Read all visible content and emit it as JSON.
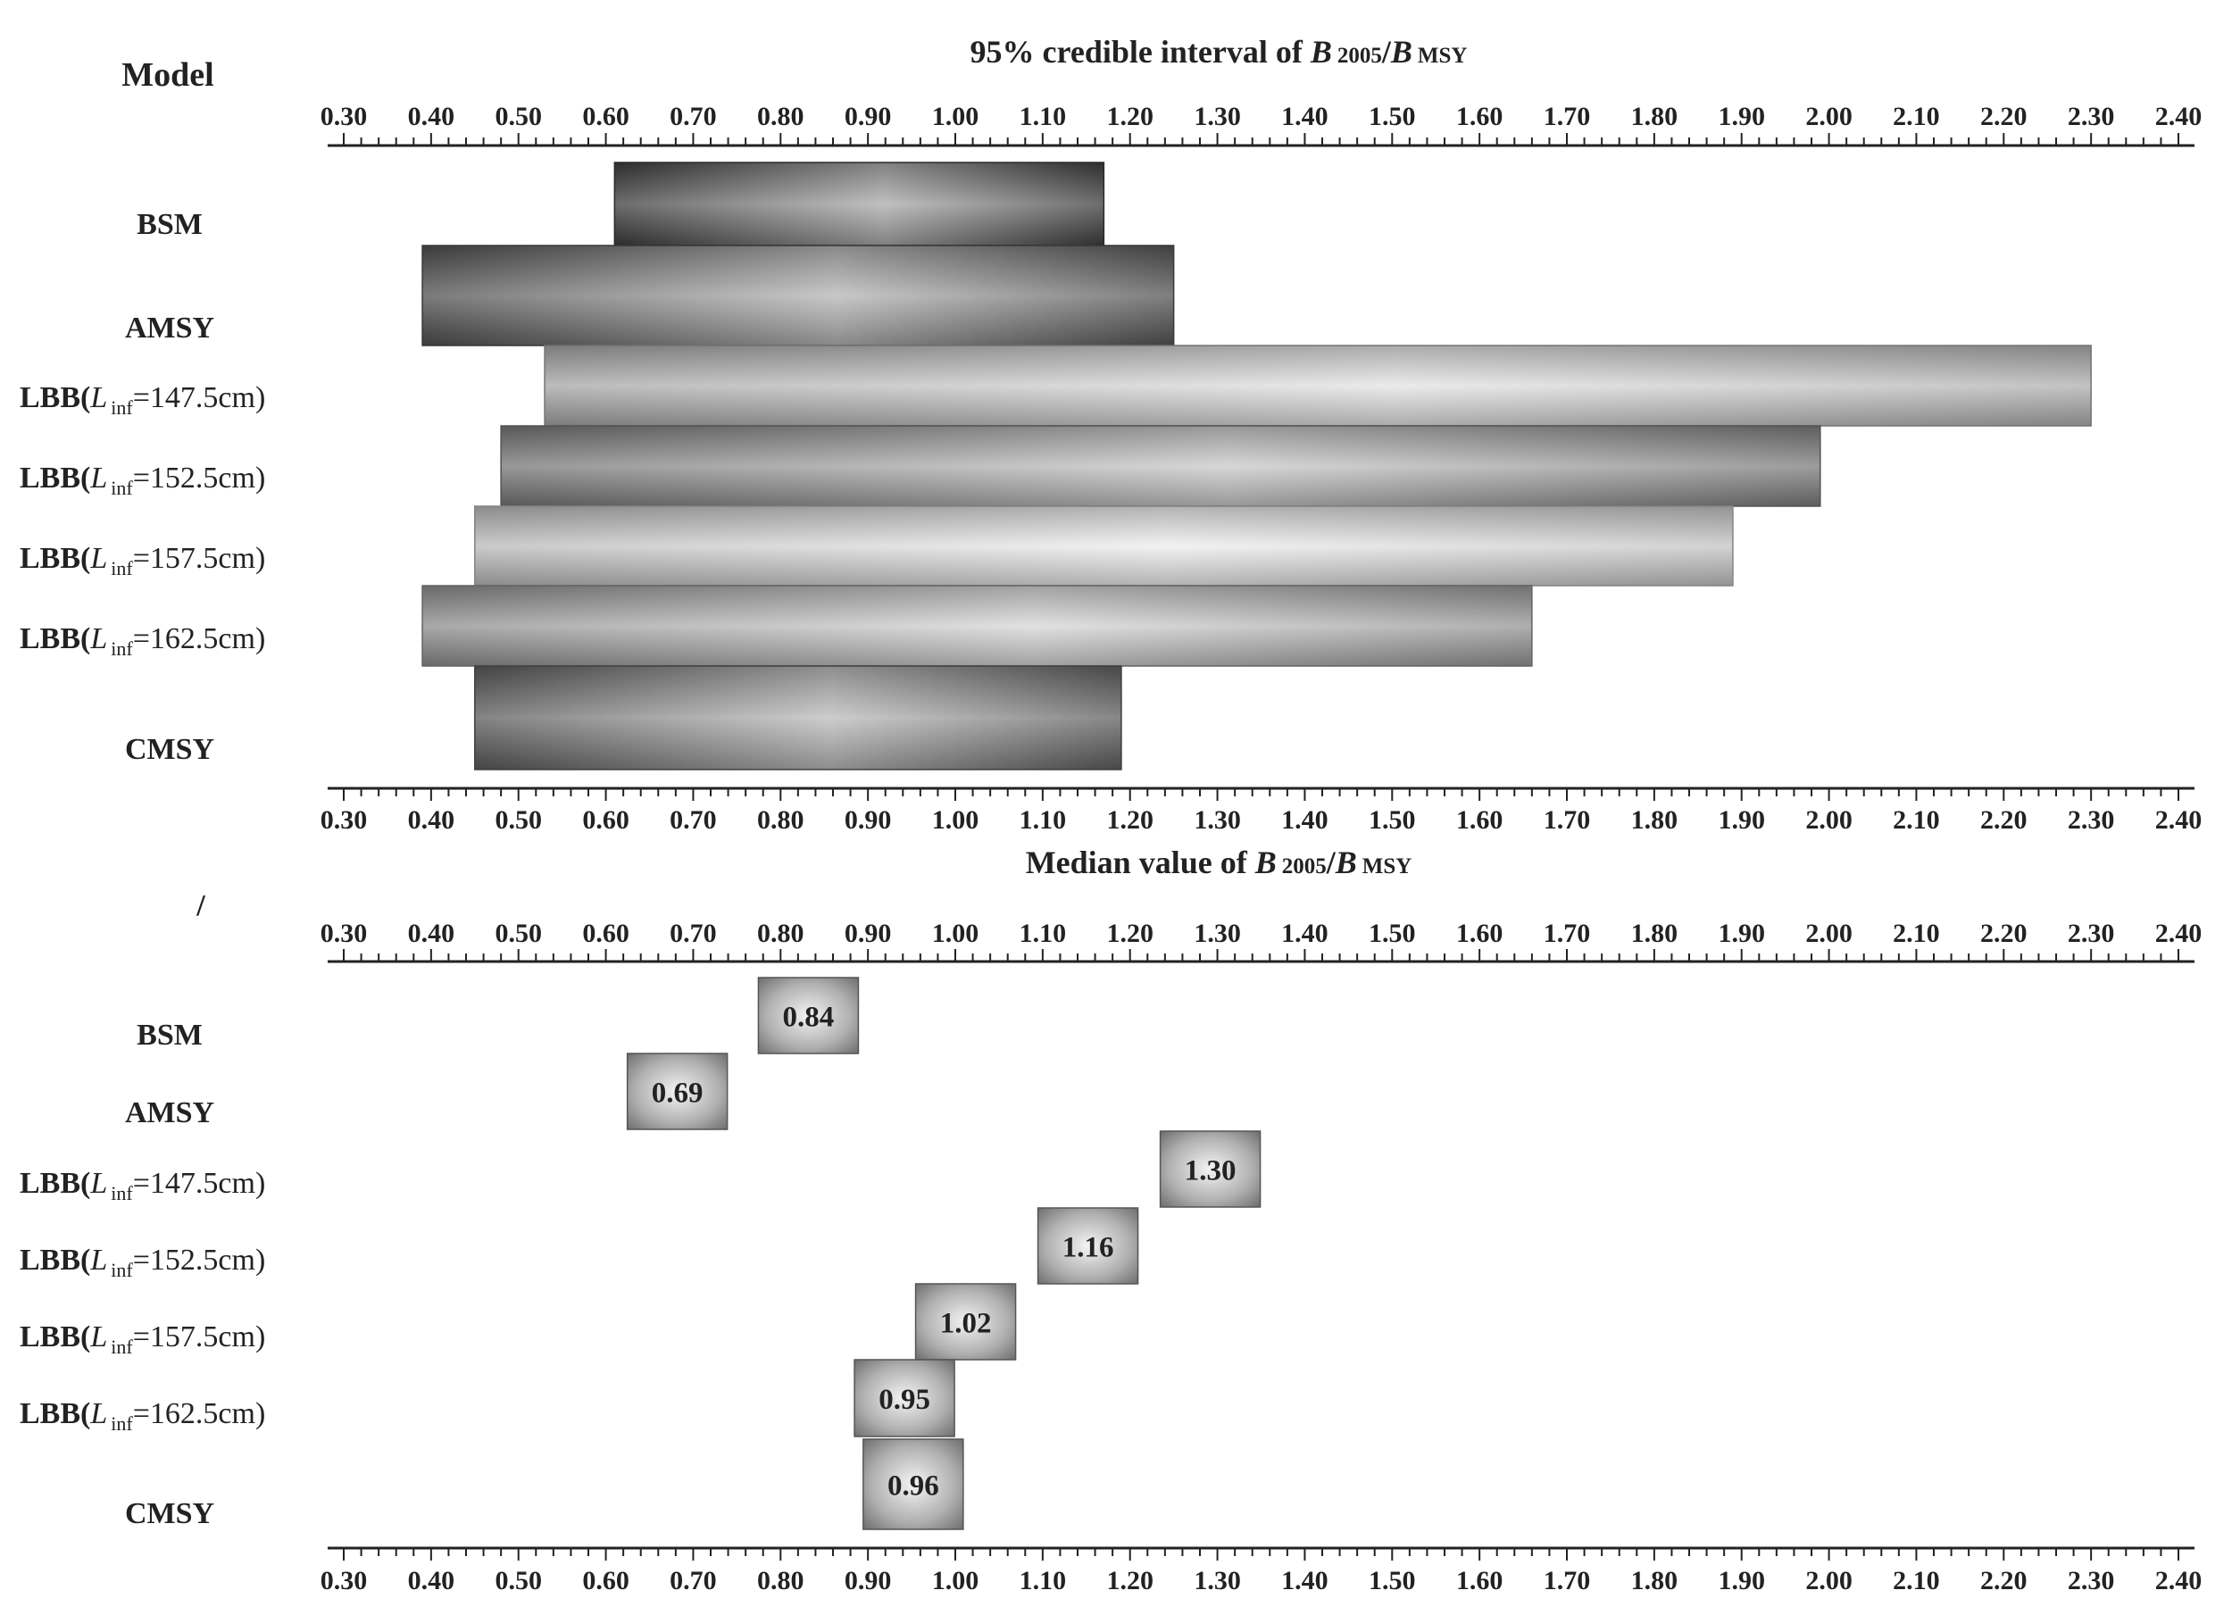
{
  "corner_labels": {
    "model": "Model",
    "slash": "/"
  },
  "panels": [
    {
      "title_prefix": "95% credible interval of ",
      "title_var": "B",
      "title_sub": "2005",
      "title_slash": "/",
      "title_var2": "B",
      "title_sub2": "MSY"
    },
    {
      "title_prefix": "Median value of ",
      "title_var": "B",
      "title_sub": "2005",
      "title_slash": "/",
      "title_var2": "B",
      "title_sub2": "MSY"
    }
  ],
  "model_labels": [
    {
      "plain": "BSM"
    },
    {
      "plain": "AMSY"
    },
    {
      "plain": "LBB(",
      "italic": "L",
      "sub": "inf",
      "tail": "=147.5cm)"
    },
    {
      "plain": "LBB(",
      "italic": "L",
      "sub": "inf",
      "tail": "=152.5cm)"
    },
    {
      "plain": "LBB(",
      "italic": "L",
      "sub": "inf",
      "tail": "=157.5cm)"
    },
    {
      "plain": "LBB(",
      "italic": "L",
      "sub": "inf",
      "tail": "=162.5cm)"
    },
    {
      "plain": "CMSY"
    }
  ],
  "ticks": [
    "0.30",
    "0.40",
    "0.50",
    "0.60",
    "0.70",
    "0.80",
    "0.90",
    "1.00",
    "1.10",
    "1.20",
    "1.30",
    "1.40",
    "1.50",
    "1.60",
    "1.70",
    "1.80",
    "1.90",
    "2.00",
    "2.10",
    "2.20",
    "2.30",
    "2.40"
  ],
  "chart_data": [
    {
      "type": "bar",
      "title": "95% credible interval of B2005/BMSY",
      "xlim": [
        0.3,
        2.4
      ],
      "categories": [
        "BSM",
        "AMSY",
        "LBB(Linf=147.5cm)",
        "LBB(Linf=152.5cm)",
        "LBB(Linf=157.5cm)",
        "LBB(Linf=162.5cm)",
        "CMSY"
      ],
      "intervals": [
        [
          0.61,
          1.17
        ],
        [
          0.39,
          1.25
        ],
        [
          0.53,
          2.3
        ],
        [
          0.48,
          1.99
        ],
        [
          0.45,
          1.89
        ],
        [
          0.39,
          1.66
        ],
        [
          0.45,
          1.19
        ]
      ],
      "shades": [
        "#454545",
        "#5d5d5d",
        "#c2c2c2",
        "#8a8a8a",
        "#dadada",
        "#a5a5a5",
        "#6a6a6a"
      ]
    },
    {
      "type": "bar",
      "title": "Median value of B2005/BMSY",
      "xlim": [
        0.3,
        2.4
      ],
      "categories": [
        "BSM",
        "AMSY",
        "LBB(Linf=147.5cm)",
        "LBB(Linf=152.5cm)",
        "LBB(Linf=157.5cm)",
        "LBB(Linf=162.5cm)",
        "CMSY"
      ],
      "values": [
        0.84,
        0.69,
        1.3,
        1.16,
        1.02,
        0.95,
        0.96
      ],
      "labels": [
        "0.84",
        "0.69",
        "1.30",
        "1.16",
        "1.02",
        "0.95",
        "0.96"
      ]
    }
  ]
}
